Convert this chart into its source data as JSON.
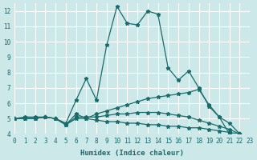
{
  "xlabel": "Humidex (Indice chaleur)",
  "ylabel": "",
  "background_color": "#cce8e8",
  "grid_color": "#ffffff",
  "line_color": "#1a6b6b",
  "xlim": [
    0,
    23
  ],
  "ylim": [
    4,
    12.5
  ],
  "yticks": [
    4,
    5,
    6,
    7,
    8,
    9,
    10,
    11,
    12
  ],
  "xticks": [
    0,
    1,
    2,
    3,
    4,
    5,
    6,
    7,
    8,
    9,
    10,
    11,
    12,
    13,
    14,
    15,
    16,
    17,
    18,
    19,
    20,
    21,
    22,
    23
  ],
  "series": [
    [
      5.0,
      5.1,
      5.1,
      5.1,
      5.0,
      4.7,
      6.2,
      7.6,
      6.2,
      9.8,
      12.3,
      11.2,
      11.1,
      12.0,
      11.8,
      8.3,
      7.5,
      8.1,
      7.0,
      5.8,
      5.1,
      4.7,
      4.0
    ],
    [
      5.0,
      5.0,
      5.0,
      5.1,
      5.0,
      4.6,
      5.3,
      5.0,
      5.3,
      5.5,
      5.7,
      5.9,
      6.1,
      6.3,
      6.4,
      6.5,
      6.6,
      6.7,
      6.9,
      5.9,
      5.1,
      4.0,
      4.0
    ],
    [
      5.0,
      5.0,
      5.0,
      5.1,
      5.0,
      4.6,
      5.1,
      5.1,
      5.1,
      5.2,
      5.3,
      5.3,
      5.4,
      5.4,
      5.4,
      5.3,
      5.2,
      5.1,
      4.9,
      4.7,
      4.5,
      4.3,
      4.0
    ],
    [
      5.0,
      5.0,
      5.0,
      5.1,
      5.0,
      4.6,
      5.0,
      5.0,
      4.9,
      4.8,
      4.8,
      4.7,
      4.7,
      4.6,
      4.6,
      4.5,
      4.5,
      4.4,
      4.4,
      4.3,
      4.2,
      4.1,
      4.0
    ]
  ]
}
